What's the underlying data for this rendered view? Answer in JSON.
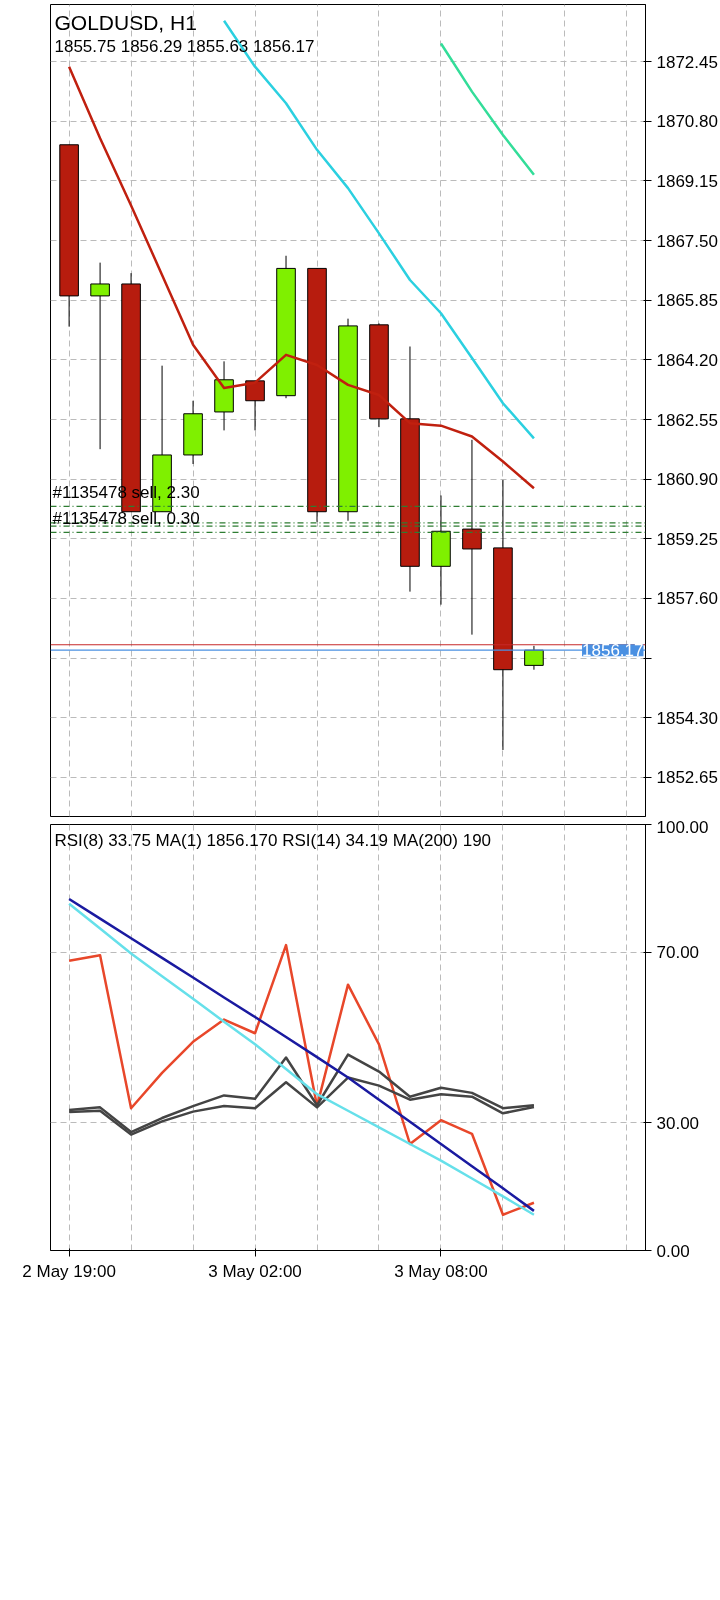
{
  "chart_data": [
    {
      "type": "candlestick",
      "title": "GOLDUSD, H1",
      "subtitle": "1855.75 1856.29 1855.63 1856.17",
      "categories": [
        null,
        null,
        null,
        null,
        null,
        null,
        null,
        null,
        null,
        null,
        null,
        null,
        null,
        null,
        null,
        null
      ],
      "tick_labels": "y",
      "ohlc": [
        [
          1870.15,
          1870.15,
          1865.12,
          1865.97
        ],
        [
          1865.97,
          1866.89,
          1861.73,
          1866.3
        ],
        [
          1866.3,
          1866.6,
          1860.0,
          1860.0
        ],
        [
          1860.0,
          1864.04,
          1860.0,
          1861.57
        ],
        [
          1861.57,
          1863.07,
          1861.32,
          1862.71
        ],
        [
          1862.76,
          1864.16,
          1862.25,
          1863.65
        ],
        [
          1863.62,
          1863.62,
          1862.25,
          1863.07
        ],
        [
          1863.21,
          1867.08,
          1863.14,
          1866.73
        ],
        [
          1866.73,
          1866.73,
          1859.72,
          1860.0
        ],
        [
          1860.0,
          1865.34,
          1859.75,
          1865.14
        ],
        [
          1865.17,
          1865.21,
          1862.34,
          1862.57
        ],
        [
          1862.57,
          1864.57,
          1857.79,
          1858.49
        ],
        [
          1858.49,
          1860.45,
          1857.43,
          1859.46
        ],
        [
          1859.52,
          1861.99,
          1856.6,
          1858.97
        ],
        [
          1859.0,
          1860.88,
          1853.41,
          1855.63
        ],
        [
          1855.75,
          1856.29,
          1855.63,
          1856.17
        ]
      ],
      "colors": [
        "#b71c0e",
        "#7ff000",
        "#b71c0e",
        "#7ff000",
        "#7ff000",
        "#7ff000",
        "#b71c0e",
        "#7ff000",
        "#b71c0e",
        "#7ff000",
        "#b71c0e",
        "#b71c0e",
        "#7ff000",
        "#b71c0e",
        "#b71c0e",
        "#7ff000"
      ],
      "series": [
        {
          "type": "line",
          "color": "#c0200f",
          "values": [
            1872.31,
            1870.33,
            1868.47,
            1866.55,
            1864.62,
            1863.42,
            1863.57,
            1864.34,
            1864.06,
            1863.51,
            1863.23,
            1862.45,
            1862.38,
            1862.08,
            1861.39,
            1860.65
          ]
        },
        {
          "type": "line",
          "color": "#2bd0e0",
          "values": [
            null,
            null,
            null,
            null,
            null,
            1873.58,
            1872.31,
            1871.3,
            1870.01,
            1868.95,
            1867.7,
            1866.41,
            1865.49,
            1864.25,
            1863.0,
            1862.03
          ]
        },
        {
          "type": "line",
          "color": "#33dd99",
          "values": [
            null,
            null,
            null,
            null,
            null,
            null,
            null,
            null,
            null,
            null,
            null,
            null,
            1872.95,
            1871.62,
            1870.42,
            1869.32
          ]
        }
      ],
      "ylim": [
        1851.57,
        1874.03
      ],
      "yticks": [
        {
          "value": 1852.65,
          "label": "1852.65"
        },
        {
          "value": 1854.3,
          "label": "1854.30"
        },
        {
          "value": 1855.95,
          "label": null
        },
        {
          "value": 1857.6,
          "label": "1857.60"
        },
        {
          "value": 1859.25,
          "label": "1859.25"
        },
        {
          "value": 1860.9,
          "label": "1860.90"
        },
        {
          "value": 1862.55,
          "label": "1862.55"
        },
        {
          "value": 1864.2,
          "label": "1864.20"
        },
        {
          "value": 1865.85,
          "label": "1865.85"
        },
        {
          "value": 1867.5,
          "label": "1867.50"
        },
        {
          "value": 1869.15,
          "label": "1869.15"
        },
        {
          "value": 1870.8,
          "label": "1870.80"
        },
        {
          "value": 1872.45,
          "label": "1872.45"
        }
      ],
      "ref_lines": [
        {
          "axis": "y",
          "value": 1860.15,
          "label": "#1135478 sell, 2.30",
          "color": "#2e7d32",
          "line_style": "dashed"
        },
        {
          "axis": "y",
          "value": 1859.69,
          "label": null,
          "color": "#2e7d32",
          "line_style": "dashed"
        },
        {
          "axis": "y",
          "value": 1859.6,
          "label": null,
          "color": "#2e7d32",
          "line_style": "dashed"
        },
        {
          "axis": "y",
          "value": 1859.43,
          "label": "#1135478 sell, 0.30",
          "color": "#2e7d32",
          "line_style": "dashed"
        },
        {
          "axis": "y",
          "value": 1856.32,
          "label": null,
          "color": "#c62828",
          "line_style": "solid"
        },
        {
          "axis": "y",
          "value": 1856.17,
          "label": "1856.17",
          "color": "#4a90e2",
          "line_style": "solid"
        }
      ],
      "grid": true
    },
    {
      "type": "line",
      "title": "RSI(8) 33.75 MA(1) 1856.170 RSI(14) 34.19 MA(200) 190",
      "categories": [
        "2 May 19:00",
        null,
        null,
        null,
        null,
        null,
        "3 May 02:00",
        null,
        null,
        null,
        null,
        null,
        "3 May 08:00",
        null,
        null,
        null
      ],
      "series": [
        {
          "color": "#e8472a",
          "values": [
            68.0,
            69.3,
            33.4,
            41.7,
            49.0,
            54.2,
            51.0,
            71.7,
            33.9,
            62.4,
            48.4,
            25.0,
            30.6,
            27.4,
            8.4,
            11.2
          ]
        },
        {
          "color": "#444444",
          "values": [
            33.0,
            33.6,
            27.8,
            31.1,
            33.9,
            36.4,
            35.6,
            45.3,
            34.1,
            46.0,
            42.0,
            36.1,
            38.2,
            37.0,
            33.4,
            34.1
          ]
        },
        {
          "color": "#444444",
          "values": [
            32.5,
            32.8,
            27.2,
            30.3,
            32.6,
            33.9,
            33.4,
            39.5,
            33.6,
            40.6,
            38.7,
            35.4,
            36.7,
            36.1,
            32.2,
            33.7
          ]
        },
        {
          "color": "#1a1aa0",
          "values": [
            82.5,
            77.9,
            73.3,
            68.7,
            64.1,
            59.4,
            54.8,
            50.1,
            45.4,
            40.6,
            35.4,
            30.2,
            25.0,
            19.8,
            14.6,
            9.3
          ]
        },
        {
          "color": "#66e0ea",
          "values": [
            81.4,
            75.6,
            69.7,
            64.4,
            59.1,
            53.7,
            48.4,
            42.6,
            36.7,
            32.8,
            28.9,
            25.0,
            21.1,
            16.9,
            12.7,
            8.4
          ]
        }
      ],
      "ylim": [
        0,
        100
      ],
      "yticks": [
        {
          "value": 0,
          "label": "0.00"
        },
        {
          "value": 30,
          "label": "30.00"
        },
        {
          "value": 70,
          "label": "70.00"
        },
        {
          "value": 100,
          "label": "100.00"
        }
      ],
      "grid": true
    }
  ]
}
